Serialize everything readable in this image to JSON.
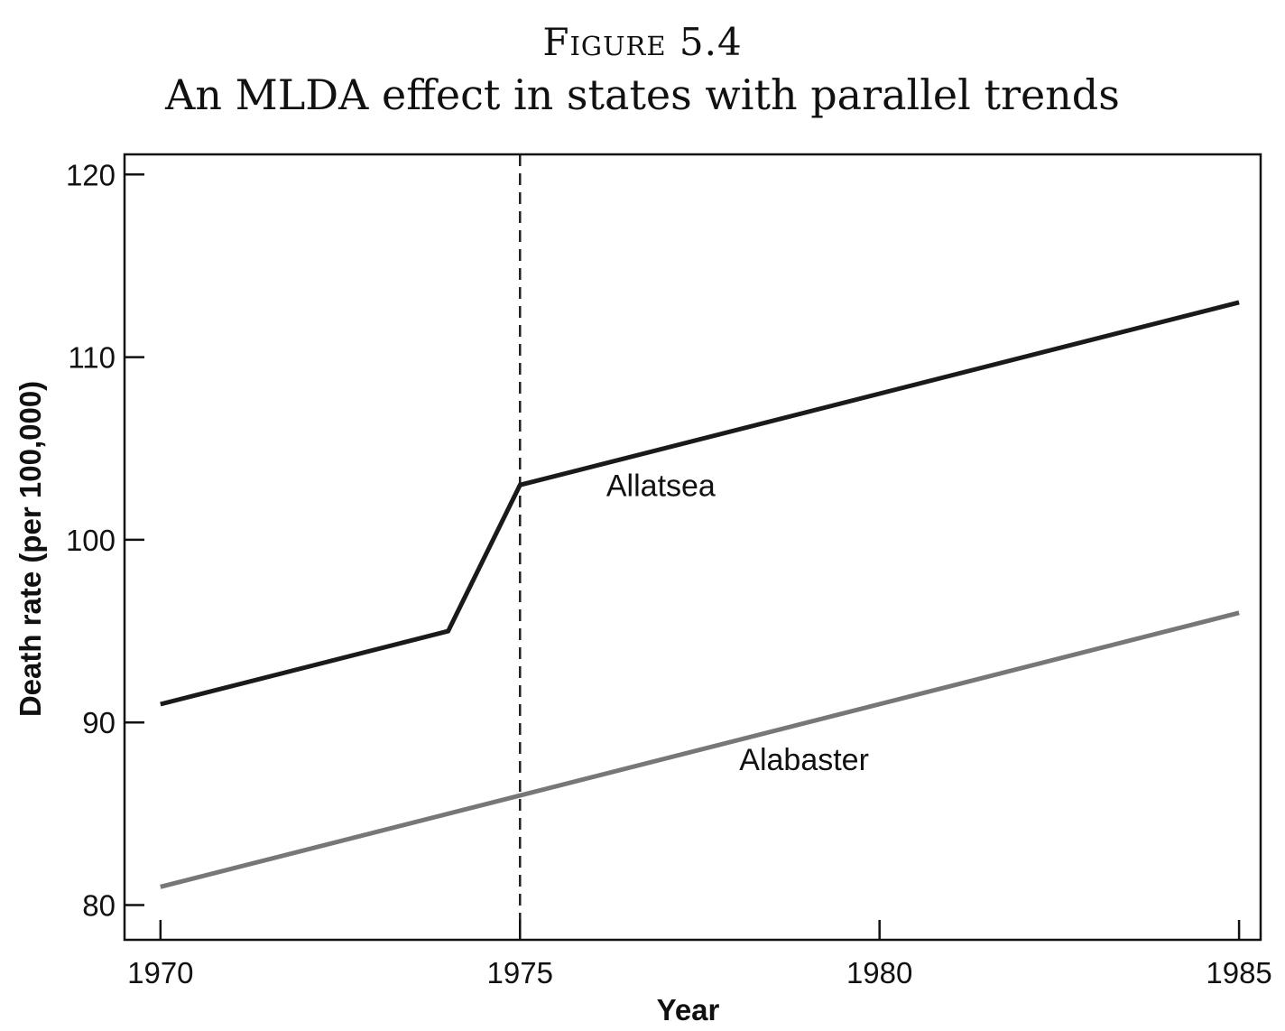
{
  "figure": {
    "label": "Figure 5.4",
    "title": "An MLDA effect in states with parallel trends"
  },
  "chart_data": {
    "type": "line",
    "xlabel": "Year",
    "ylabel": "Death rate (per 100,000)",
    "xlim": [
      1969.5,
      1985.3
    ],
    "ylim": [
      78.1,
      121.1
    ],
    "x_ticks": [
      1970,
      1975,
      1980,
      1985
    ],
    "y_ticks": [
      80,
      90,
      100,
      110,
      120
    ],
    "grid": false,
    "legend": "none",
    "reference_line": {
      "x": 1975,
      "style": "dashed",
      "color": "#222222"
    },
    "series": [
      {
        "name": "Allatsea",
        "color": "#1a1a1a",
        "label_at": [
          1976.2,
          102.4
        ],
        "points": [
          [
            1970,
            91
          ],
          [
            1974,
            95
          ],
          [
            1975,
            103
          ],
          [
            1985,
            113
          ]
        ]
      },
      {
        "name": "Alabaster",
        "color": "#777777",
        "label_at": [
          1978.05,
          87.4
        ],
        "points": [
          [
            1970,
            81
          ],
          [
            1985,
            96
          ]
        ]
      }
    ]
  }
}
